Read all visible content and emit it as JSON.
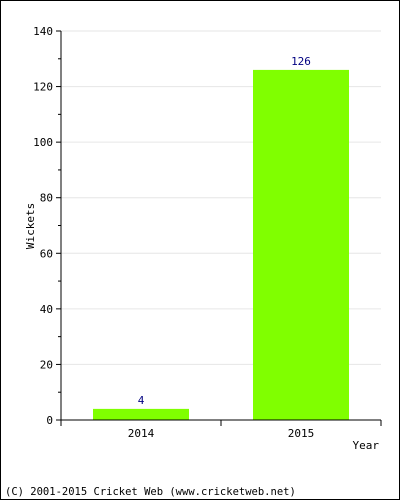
{
  "chart_data": {
    "type": "bar",
    "categories": [
      "2014",
      "2015"
    ],
    "values": [
      4,
      126
    ],
    "data_labels": [
      "4",
      "126"
    ],
    "xlabel": "Year",
    "ylabel": "Wickets",
    "ylim": [
      0,
      140
    ],
    "yticks": [
      0,
      20,
      40,
      60,
      80,
      100,
      120,
      140
    ],
    "grid": true,
    "bar_color": "#80ff00",
    "data_label_color": "#000080"
  },
  "footer": {
    "copyright": "(C) 2001-2015 Cricket Web (www.cricketweb.net)"
  }
}
